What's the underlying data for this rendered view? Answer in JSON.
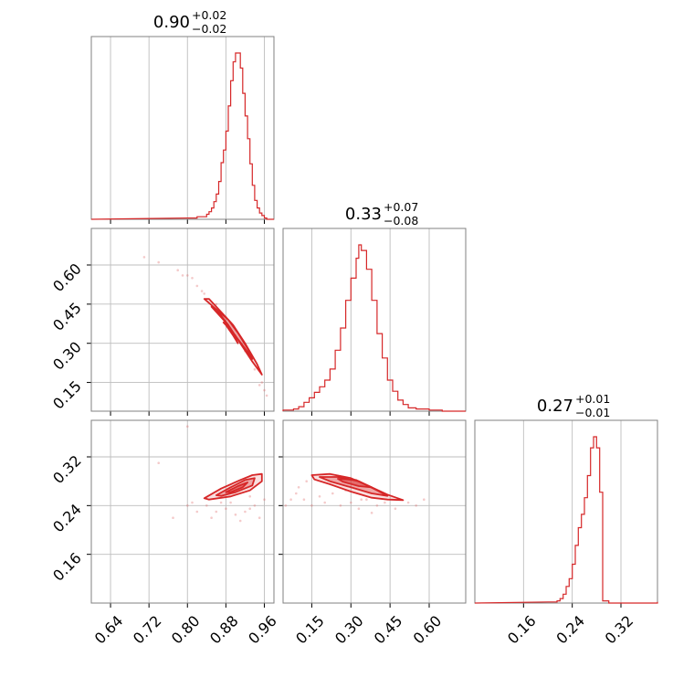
{
  "chart_data": {
    "type": "corner",
    "color": "#d62728",
    "grid": true,
    "parameters": [
      {
        "index": 0,
        "range": [
          0.6,
          0.98
        ],
        "ticks": [
          0.64,
          0.72,
          0.8,
          0.88,
          0.96
        ],
        "tick_labels": [
          "0.64",
          "0.72",
          "0.80",
          "0.88",
          "0.96"
        ],
        "median": 0.9,
        "plus": 0.02,
        "minus": 0.02,
        "title_main": "0.90",
        "title_plus": "+0.02",
        "title_minus": "−0.02"
      },
      {
        "index": 1,
        "range": [
          0.04,
          0.74
        ],
        "ticks": [
          0.15,
          0.3,
          0.45,
          0.6
        ],
        "tick_labels": [
          "0.15",
          "0.30",
          "0.45",
          "0.60"
        ],
        "median": 0.33,
        "plus": 0.07,
        "minus": 0.08,
        "title_main": "0.33",
        "title_plus": "+0.07",
        "title_minus": "−0.08"
      },
      {
        "index": 2,
        "range": [
          0.08,
          0.38
        ],
        "ticks": [
          0.16,
          0.24,
          0.32
        ],
        "tick_labels": [
          "0.16",
          "0.24",
          "0.32"
        ],
        "median": 0.27,
        "plus": 0.01,
        "minus": 0.01,
        "title_main": "0.27",
        "title_plus": "+0.01",
        "title_minus": "−0.01"
      }
    ],
    "histograms": [
      {
        "param": 0,
        "x": [
          0.8,
          0.82,
          0.84,
          0.845,
          0.85,
          0.855,
          0.86,
          0.865,
          0.87,
          0.875,
          0.88,
          0.885,
          0.89,
          0.895,
          0.9,
          0.905,
          0.91,
          0.915,
          0.92,
          0.925,
          0.93,
          0.935,
          0.94,
          0.945,
          0.95,
          0.955,
          0.96,
          0.965,
          0.97
        ],
        "y": [
          1,
          2,
          4,
          6,
          9,
          14,
          20,
          30,
          45,
          55,
          70,
          90,
          110,
          125,
          132,
          132,
          120,
          100,
          82,
          64,
          44,
          27,
          15,
          9,
          5,
          3,
          1,
          0,
          0
        ]
      },
      {
        "param": 1,
        "x": [
          0.04,
          0.08,
          0.1,
          0.12,
          0.14,
          0.16,
          0.18,
          0.2,
          0.22,
          0.24,
          0.26,
          0.28,
          0.3,
          0.32,
          0.33,
          0.34,
          0.36,
          0.38,
          0.4,
          0.42,
          0.44,
          0.46,
          0.48,
          0.5,
          0.52,
          0.55,
          0.6,
          0.65,
          0.7
        ],
        "y": [
          1,
          2,
          4,
          8,
          12,
          17,
          22,
          28,
          38,
          55,
          75,
          100,
          120,
          138,
          150,
          145,
          128,
          100,
          70,
          48,
          28,
          18,
          10,
          6,
          3,
          2,
          1,
          0,
          0
        ]
      },
      {
        "param": 2,
        "x": [
          0.2,
          0.21,
          0.215,
          0.22,
          0.225,
          0.23,
          0.235,
          0.24,
          0.245,
          0.25,
          0.255,
          0.26,
          0.265,
          0.27,
          0.275,
          0.28,
          0.285,
          0.29,
          0.3,
          0.31,
          0.32,
          0.35,
          0.38
        ],
        "y": [
          1,
          1,
          2,
          4,
          8,
          15,
          22,
          35,
          52,
          68,
          80,
          95,
          115,
          140,
          150,
          140,
          100,
          2,
          0,
          0,
          0,
          0,
          1
        ]
      }
    ],
    "pairs": [
      {
        "x_param": 0,
        "y_param": 1,
        "contours": [
          [
            [
              0.835,
              0.47
            ],
            [
              0.86,
              0.43
            ],
            [
              0.885,
              0.37
            ],
            [
              0.91,
              0.3
            ],
            [
              0.935,
              0.23
            ],
            [
              0.955,
              0.18
            ],
            [
              0.945,
              0.22
            ],
            [
              0.92,
              0.3
            ],
            [
              0.895,
              0.37
            ],
            [
              0.87,
              0.42
            ],
            [
              0.845,
              0.47
            ]
          ],
          [
            [
              0.85,
              0.44
            ],
            [
              0.875,
              0.39
            ],
            [
              0.895,
              0.34
            ],
            [
              0.92,
              0.28
            ],
            [
              0.935,
              0.24
            ],
            [
              0.925,
              0.28
            ],
            [
              0.905,
              0.34
            ],
            [
              0.885,
              0.39
            ],
            [
              0.86,
              0.43
            ]
          ],
          [
            [
              0.875,
              0.38
            ],
            [
              0.895,
              0.34
            ],
            [
              0.905,
              0.3
            ],
            [
              0.895,
              0.33
            ],
            [
              0.88,
              0.37
            ]
          ]
        ],
        "points": [
          [
            0.71,
            0.63
          ],
          [
            0.74,
            0.61
          ],
          [
            0.78,
            0.58
          ],
          [
            0.81,
            0.55
          ],
          [
            0.82,
            0.52
          ],
          [
            0.83,
            0.5
          ],
          [
            0.835,
            0.49
          ],
          [
            0.96,
            0.12
          ],
          [
            0.965,
            0.1
          ],
          [
            0.955,
            0.15
          ],
          [
            0.88,
            0.4
          ],
          [
            0.9,
            0.33
          ],
          [
            0.92,
            0.27
          ],
          [
            0.86,
            0.45
          ],
          [
            0.94,
            0.2
          ],
          [
            0.95,
            0.14
          ],
          [
            0.79,
            0.56
          ],
          [
            0.8,
            0.56
          ]
        ]
      },
      {
        "x_param": 0,
        "y_param": 2,
        "contours": [
          [
            [
              0.835,
              0.252
            ],
            [
              0.87,
              0.268
            ],
            [
              0.91,
              0.282
            ],
            [
              0.935,
              0.29
            ],
            [
              0.955,
              0.292
            ],
            [
              0.955,
              0.28
            ],
            [
              0.93,
              0.265
            ],
            [
              0.89,
              0.255
            ],
            [
              0.845,
              0.25
            ]
          ],
          [
            [
              0.86,
              0.257
            ],
            [
              0.89,
              0.27
            ],
            [
              0.92,
              0.282
            ],
            [
              0.94,
              0.285
            ],
            [
              0.935,
              0.273
            ],
            [
              0.9,
              0.262
            ],
            [
              0.87,
              0.256
            ]
          ],
          [
            [
              0.88,
              0.262
            ],
            [
              0.905,
              0.272
            ],
            [
              0.925,
              0.278
            ],
            [
              0.915,
              0.27
            ],
            [
              0.89,
              0.262
            ]
          ]
        ],
        "points": [
          [
            0.8,
            0.24
          ],
          [
            0.81,
            0.245
          ],
          [
            0.84,
            0.24
          ],
          [
            0.86,
            0.23
          ],
          [
            0.88,
            0.235
          ],
          [
            0.9,
            0.225
          ],
          [
            0.92,
            0.23
          ],
          [
            0.94,
            0.24
          ],
          [
            0.95,
            0.22
          ],
          [
            0.82,
            0.23
          ],
          [
            0.85,
            0.22
          ],
          [
            0.91,
            0.215
          ],
          [
            0.93,
            0.255
          ],
          [
            0.96,
            0.25
          ],
          [
            0.74,
            0.31
          ],
          [
            0.77,
            0.22
          ],
          [
            0.8,
            0.37
          ],
          [
            0.87,
            0.245
          ],
          [
            0.89,
            0.245
          ],
          [
            0.93,
            0.235
          ]
        ]
      },
      {
        "x_param": 1,
        "y_param": 2,
        "contours": [
          [
            [
              0.15,
              0.29
            ],
            [
              0.22,
              0.292
            ],
            [
              0.3,
              0.285
            ],
            [
              0.38,
              0.27
            ],
            [
              0.44,
              0.258
            ],
            [
              0.5,
              0.249
            ],
            [
              0.44,
              0.25
            ],
            [
              0.38,
              0.253
            ],
            [
              0.3,
              0.263
            ],
            [
              0.22,
              0.275
            ],
            [
              0.16,
              0.283
            ]
          ],
          [
            [
              0.18,
              0.287
            ],
            [
              0.25,
              0.287
            ],
            [
              0.33,
              0.28
            ],
            [
              0.4,
              0.265
            ],
            [
              0.44,
              0.256
            ],
            [
              0.38,
              0.26
            ],
            [
              0.3,
              0.27
            ],
            [
              0.22,
              0.28
            ]
          ],
          [
            [
              0.25,
              0.284
            ],
            [
              0.32,
              0.282
            ],
            [
              0.38,
              0.27
            ],
            [
              0.33,
              0.272
            ],
            [
              0.27,
              0.279
            ]
          ]
        ],
        "points": [
          [
            0.05,
            0.24
          ],
          [
            0.07,
            0.25
          ],
          [
            0.1,
            0.27
          ],
          [
            0.12,
            0.25
          ],
          [
            0.15,
            0.24
          ],
          [
            0.18,
            0.255
          ],
          [
            0.2,
            0.245
          ],
          [
            0.23,
            0.26
          ],
          [
            0.26,
            0.24
          ],
          [
            0.3,
            0.245
          ],
          [
            0.33,
            0.235
          ],
          [
            0.36,
            0.25
          ],
          [
            0.4,
            0.24
          ],
          [
            0.43,
            0.245
          ],
          [
            0.47,
            0.235
          ],
          [
            0.52,
            0.245
          ],
          [
            0.55,
            0.24
          ],
          [
            0.58,
            0.25
          ],
          [
            0.13,
            0.28
          ],
          [
            0.09,
            0.26
          ],
          [
            0.38,
            0.228
          ],
          [
            0.28,
            0.265
          ],
          [
            0.34,
            0.25
          ]
        ]
      }
    ]
  }
}
